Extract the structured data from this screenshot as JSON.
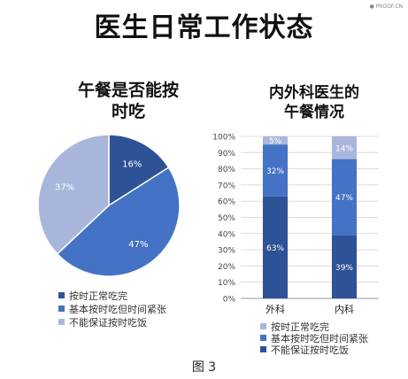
{
  "title": "医生日常工作状态",
  "watermark": "● PROOF.CN",
  "caption": "图 3",
  "colors": {
    "dark": "#2e5296",
    "mid": "#4472c4",
    "light": "#a9b6dc"
  },
  "chart_data": [
    {
      "type": "pie",
      "title_lines": [
        "午餐是否能按",
        "时吃"
      ],
      "slices": [
        {
          "label": "按时正常吃完",
          "value": 16,
          "value_label": "16%",
          "color": "#2e5296"
        },
        {
          "label": "基本按时吃但时间紧张",
          "value": 47,
          "value_label": "47%",
          "color": "#4472c4"
        },
        {
          "label": "不能保证按时吃饭",
          "value": 37,
          "value_label": "37%",
          "color": "#a9b6dc"
        }
      ],
      "legend_position": "bottom-left"
    },
    {
      "type": "bar",
      "stacked": true,
      "title_lines": [
        "内外科医生的",
        "午餐情况"
      ],
      "categories": [
        "外科",
        "内科"
      ],
      "series": [
        {
          "name": "不能保证按时吃饭",
          "values": [
            63,
            39
          ],
          "value_labels": [
            "63%",
            "39%"
          ],
          "color": "#2e5296"
        },
        {
          "name": "基本按时吃但时间紧张",
          "values": [
            32,
            47
          ],
          "value_labels": [
            "32%",
            "47%"
          ],
          "color": "#4472c4"
        },
        {
          "name": "按时正常吃完",
          "values": [
            5,
            14
          ],
          "value_labels": [
            "5%",
            "14%"
          ],
          "color": "#a9b6dc"
        }
      ],
      "yticks": [
        "0%",
        "10%",
        "20%",
        "30%",
        "40%",
        "50%",
        "60%",
        "70%",
        "80%",
        "90%",
        "100%"
      ],
      "ylim": [
        0,
        100
      ],
      "grid": true,
      "legend_entries": [
        "按时正常吃完",
        "基本按时吃但时间紧张",
        "不能保证按时吃饭"
      ],
      "legend_position": "bottom"
    }
  ]
}
